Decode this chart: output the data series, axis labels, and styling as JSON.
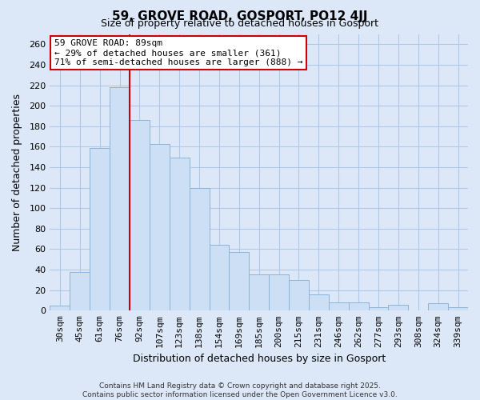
{
  "title": "59, GROVE ROAD, GOSPORT, PO12 4JJ",
  "subtitle": "Size of property relative to detached houses in Gosport",
  "xlabel": "Distribution of detached houses by size in Gosport",
  "ylabel": "Number of detached properties",
  "bar_labels": [
    "30sqm",
    "45sqm",
    "61sqm",
    "76sqm",
    "92sqm",
    "107sqm",
    "123sqm",
    "138sqm",
    "154sqm",
    "169sqm",
    "185sqm",
    "200sqm",
    "215sqm",
    "231sqm",
    "246sqm",
    "262sqm",
    "277sqm",
    "293sqm",
    "308sqm",
    "324sqm",
    "339sqm"
  ],
  "bar_values": [
    5,
    38,
    159,
    218,
    186,
    163,
    149,
    120,
    64,
    57,
    35,
    35,
    30,
    16,
    8,
    8,
    3,
    6,
    0,
    7,
    3
  ],
  "bar_color": "#ccdff5",
  "bar_edge_color": "#8ab4d8",
  "grid_color": "#adc8e8",
  "background_color": "#dce8f8",
  "vline_color": "#cc0000",
  "annotation_title": "59 GROVE ROAD: 89sqm",
  "annotation_line1": "← 29% of detached houses are smaller (361)",
  "annotation_line2": "71% of semi-detached houses are larger (888) →",
  "annotation_box_color": "#ffffff",
  "annotation_box_edge": "#cc0000",
  "footer1": "Contains HM Land Registry data © Crown copyright and database right 2025.",
  "footer2": "Contains public sector information licensed under the Open Government Licence v3.0.",
  "ylim": [
    0,
    270
  ],
  "yticks": [
    0,
    20,
    40,
    60,
    80,
    100,
    120,
    140,
    160,
    180,
    200,
    220,
    240,
    260
  ],
  "figsize": [
    6.0,
    5.0
  ],
  "dpi": 100
}
